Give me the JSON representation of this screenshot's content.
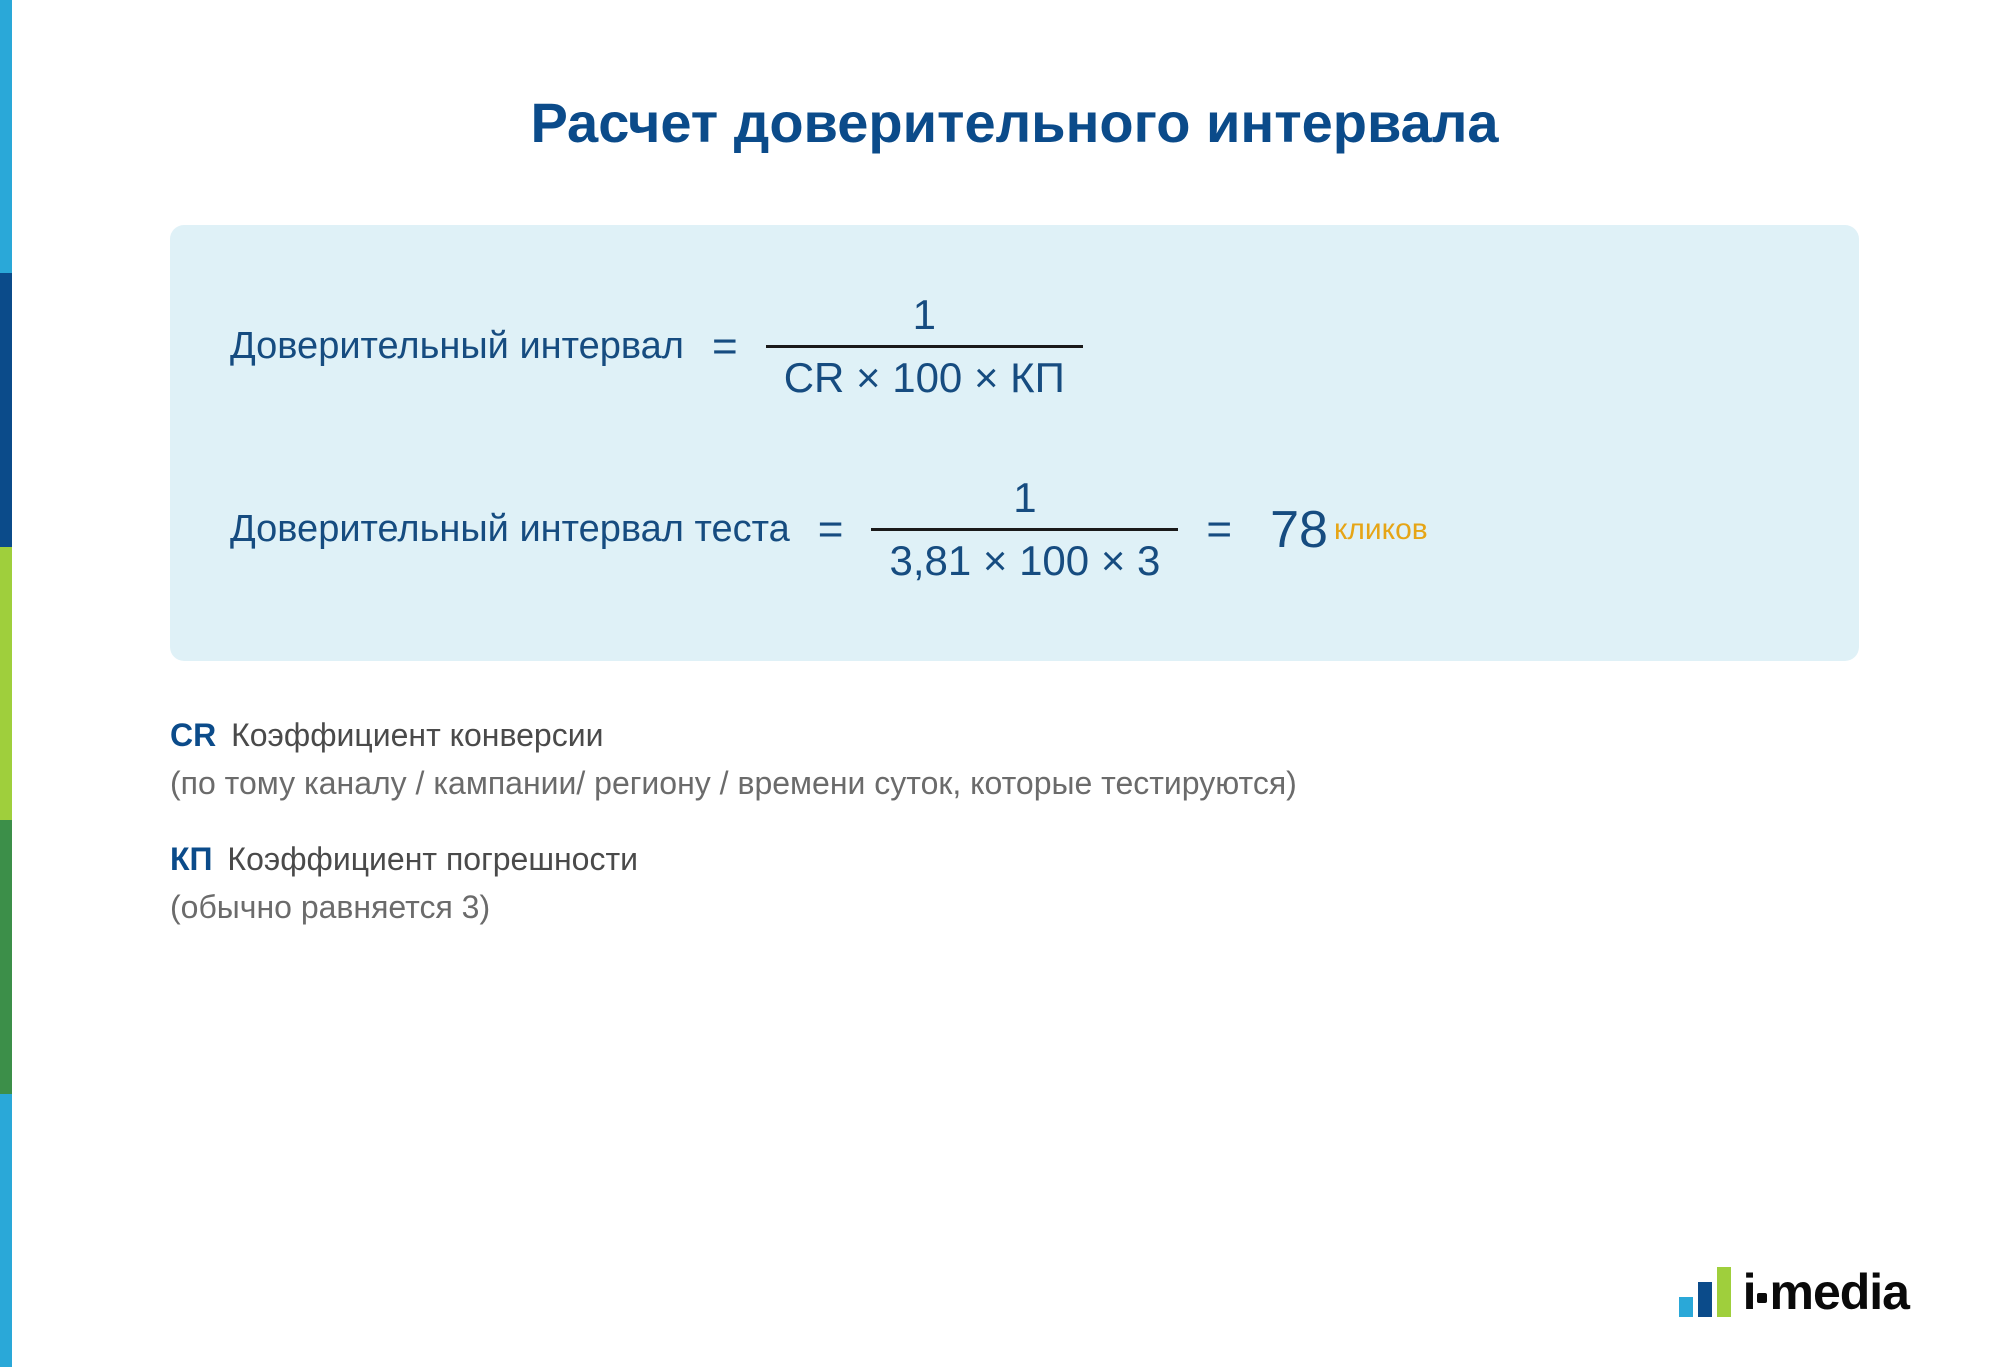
{
  "colors": {
    "title": "#0b4b8a",
    "formula_bg": "#dff1f7",
    "formula_text": "#164c80",
    "frac_line": "#1a1a1a",
    "result_unit": "#e6a516",
    "legend_abbr": "#0b4b8a",
    "legend_term": "#4a4a4a",
    "legend_note": "#6b6b6b",
    "logo_text": "#0a0a0a",
    "stripes": [
      "#2aa8d8",
      "#0b4b8a",
      "#9fcf3c",
      "#3c8f49",
      "#2aa8d8"
    ],
    "logo_bars": [
      "#2aa8d8",
      "#0b4b8a",
      "#9fcf3c"
    ],
    "logo_bar_heights": [
      20,
      35,
      50
    ]
  },
  "title": "Расчет доверительного интервала",
  "formula1": {
    "label": "Доверительный интервал",
    "numerator": "1",
    "denominator": "CR × 100 × КП"
  },
  "formula2": {
    "label": "Доверительный интервал теста",
    "numerator": "1",
    "denominator": "3,81 × 100 × 3",
    "result_value": "78",
    "result_unit": "кликов"
  },
  "legend": {
    "cr": {
      "abbr": "CR",
      "term": "Коэффициент конверсии",
      "note": "(по тому каналу / кампании/ региону / времени суток, которые тестируются)"
    },
    "kp": {
      "abbr": "КП",
      "term": "Коэффициент погрешности",
      "note": "(обычно равняется 3)"
    }
  },
  "logo": {
    "text_left": "i",
    "text_right": "media"
  }
}
